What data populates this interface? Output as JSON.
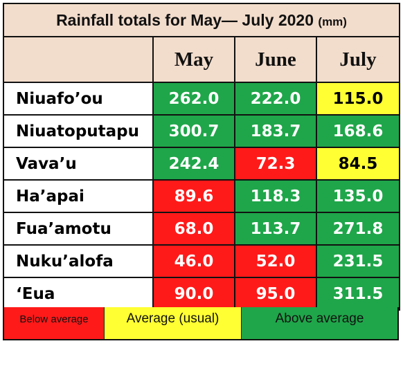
{
  "title": "Rainfall totals for May— July 2020",
  "title_unit": "(mm)",
  "columns": [
    "May",
    "June",
    "July"
  ],
  "colors": {
    "header_bg": "#f2dccb",
    "below": "#ff1a1a",
    "average": "#ffff33",
    "above": "#1fa64a"
  },
  "rows": [
    {
      "station": "Niuafo’ou",
      "values": [
        "262.0",
        "222.0",
        "115.0"
      ],
      "status": [
        "above",
        "above",
        "average"
      ]
    },
    {
      "station": "Niuatoputapu",
      "values": [
        "300.7",
        "183.7",
        "168.6"
      ],
      "status": [
        "above",
        "above",
        "above"
      ]
    },
    {
      "station": "Vava’u",
      "values": [
        "242.4",
        "72.3",
        "84.5"
      ],
      "status": [
        "above",
        "below",
        "average"
      ]
    },
    {
      "station": "Ha’apai",
      "values": [
        "89.6",
        "118.3",
        "135.0"
      ],
      "status": [
        "below",
        "above",
        "above"
      ]
    },
    {
      "station": "Fua’amotu",
      "values": [
        "68.0",
        "113.7",
        "271.8"
      ],
      "status": [
        "below",
        "above",
        "above"
      ]
    },
    {
      "station": "Nuku’alofa",
      "values": [
        "46.0",
        "52.0",
        "231.5"
      ],
      "status": [
        "below",
        "below",
        "above"
      ]
    },
    {
      "station": "‘Eua",
      "values": [
        "90.0",
        "95.0",
        "311.5"
      ],
      "status": [
        "below",
        "below",
        "above"
      ]
    }
  ],
  "legend": {
    "below": "Below average",
    "average": "Average (usual)",
    "above": "Above average"
  }
}
